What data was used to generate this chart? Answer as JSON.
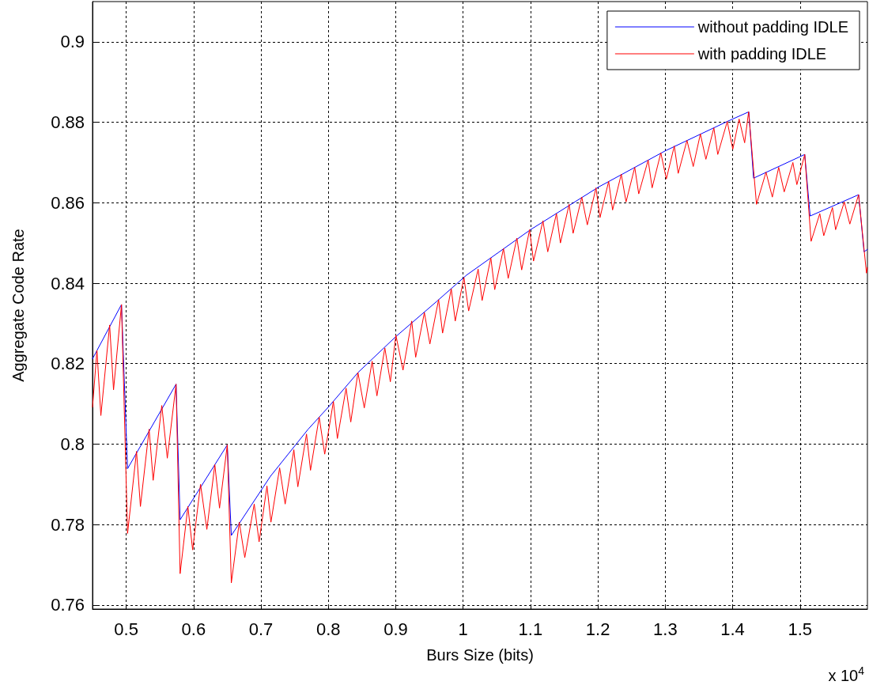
{
  "chart_data": {
    "type": "line",
    "xlabel": "Burs Size (bits)",
    "ylabel": "Aggregate Code Rate",
    "annotations": [
      "x 10$^{4}$"
    ],
    "xlim": [
      0.45,
      1.6
    ],
    "xticks": [
      0.5,
      0.6,
      0.7,
      0.8,
      0.9,
      1,
      1.1,
      1.2,
      1.3,
      1.4,
      1.5
    ],
    "ylim": [
      0.759,
      0.91
    ],
    "yticks": [
      0.76,
      0.78,
      0.8,
      0.82,
      0.84,
      0.86,
      0.88,
      0.9
    ],
    "grid": true,
    "legend": "top right",
    "marker": "none",
    "line_style": "solid",
    "series": [
      {
        "name": "without padding IDLE",
        "color": "#0000ff",
        "x": [
          0.45,
          0.493,
          0.502,
          0.574,
          0.58,
          0.65,
          0.656,
          0.714,
          0.77,
          0.8,
          0.844,
          0.9,
          0.961,
          1.005,
          1.1,
          1.201,
          1.3,
          1.392,
          1.424,
          1.431,
          1.507,
          1.515,
          1.587,
          1.595,
          1.6
        ],
        "values": [
          0.8212,
          0.8347,
          0.7939,
          0.8149,
          0.7812,
          0.7998,
          0.7773,
          0.792,
          0.8037,
          0.8092,
          0.8178,
          0.8267,
          0.8355,
          0.842,
          0.8533,
          0.8639,
          0.8729,
          0.8802,
          0.8826,
          0.8661,
          0.872,
          0.8567,
          0.862,
          0.8478,
          0.8484
        ]
      },
      {
        "name": "with padding IDLE",
        "color": "#ff0000",
        "x": [
          0.45,
          0.4566,
          0.4624,
          0.4754,
          0.4812,
          0.493,
          0.502,
          0.5153,
          0.5211,
          0.534,
          0.54,
          0.5528,
          0.561,
          0.574,
          0.58,
          0.5915,
          0.5986,
          0.6103,
          0.6197,
          0.6315,
          0.6385,
          0.65,
          0.656,
          0.6678,
          0.676,
          0.69,
          0.6972,
          0.7089,
          0.7148,
          0.7277,
          0.7359,
          0.7488,
          0.7547,
          0.7676,
          0.7735,
          0.7864,
          0.7946,
          0.8075,
          0.8134,
          0.8263,
          0.8333,
          0.8439,
          0.8533,
          0.865,
          0.8721,
          0.8838,
          0.892,
          0.9002,
          0.9108,
          0.9237,
          0.9296,
          0.9425,
          0.9507,
          0.9636,
          0.9695,
          0.9824,
          0.9883,
          1.0012,
          1.0082,
          1.0223,
          1.0282,
          1.0411,
          1.0469,
          1.0599,
          1.0669,
          1.0798,
          1.0869,
          1.0986,
          1.1045,
          1.1185,
          1.1256,
          1.1385,
          1.1444,
          1.1573,
          1.1632,
          1.1761,
          1.1843,
          1.1972,
          1.2031,
          1.216,
          1.2218,
          1.2347,
          1.2418,
          1.2547,
          1.2606,
          1.2746,
          1.2805,
          1.2934,
          1.3016,
          1.3134,
          1.3192,
          1.3322,
          1.3415,
          1.3521,
          1.3603,
          1.3721,
          1.3779,
          1.392,
          1.4002,
          1.4096,
          1.4178,
          1.4237,
          1.4354,
          1.4495,
          1.4589,
          1.4683,
          1.4765,
          1.4894,
          1.4953,
          1.507,
          1.5164,
          1.5293,
          1.5352,
          1.5481,
          1.5528,
          1.5657,
          1.5739,
          1.5869,
          1.5986,
          1.6
        ],
        "values": [
          0.8092,
          0.8233,
          0.8071,
          0.8296,
          0.8135,
          0.8347,
          0.7778,
          0.7982,
          0.7845,
          0.8037,
          0.791,
          0.8096,
          0.7965,
          0.8149,
          0.7678,
          0.7845,
          0.7737,
          0.79,
          0.7788,
          0.7949,
          0.7841,
          0.7998,
          0.7655,
          0.7806,
          0.7718,
          0.7851,
          0.7757,
          0.7896,
          0.7806,
          0.7941,
          0.7851,
          0.7986,
          0.7894,
          0.8025,
          0.7935,
          0.8067,
          0.7975,
          0.8106,
          0.8014,
          0.8139,
          0.8055,
          0.8178,
          0.809,
          0.8206,
          0.812,
          0.8239,
          0.8155,
          0.8271,
          0.8184,
          0.8306,
          0.8216,
          0.8327,
          0.8249,
          0.8359,
          0.8276,
          0.8386,
          0.8306,
          0.8414,
          0.8331,
          0.8435,
          0.8357,
          0.8463,
          0.8384,
          0.8486,
          0.8412,
          0.8512,
          0.8433,
          0.8533,
          0.8455,
          0.8555,
          0.8478,
          0.8573,
          0.85,
          0.8596,
          0.8524,
          0.8614,
          0.8545,
          0.8637,
          0.8563,
          0.8653,
          0.8582,
          0.8671,
          0.8602,
          0.8688,
          0.8622,
          0.8706,
          0.8637,
          0.8724,
          0.8659,
          0.8741,
          0.8673,
          0.8755,
          0.869,
          0.8771,
          0.8708,
          0.8786,
          0.872,
          0.8802,
          0.8733,
          0.8808,
          0.8749,
          0.8826,
          0.8596,
          0.8676,
          0.8614,
          0.8688,
          0.8627,
          0.87,
          0.8645,
          0.872,
          0.8504,
          0.8573,
          0.8518,
          0.8588,
          0.8533,
          0.8602,
          0.8547,
          0.862,
          0.8425,
          0.8439
        ]
      }
    ]
  }
}
